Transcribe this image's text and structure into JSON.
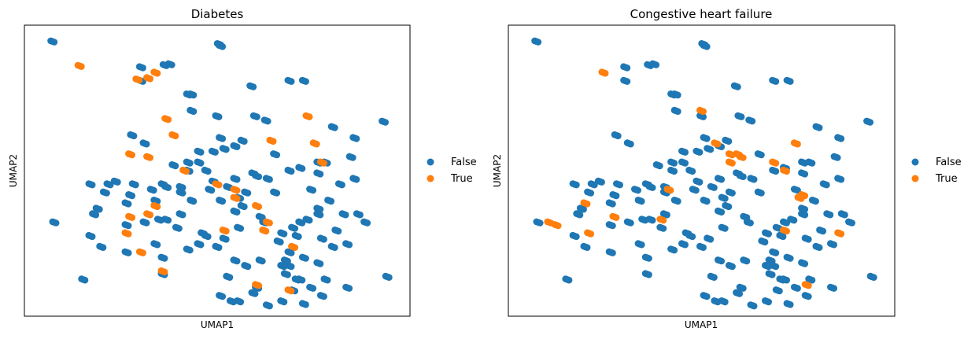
{
  "colors": {
    "false": "#1f77b4",
    "true": "#ff7f0e"
  },
  "chart_data": [
    {
      "type": "scatter",
      "title": "Diabetes",
      "xlabel": "UMAP1",
      "ylabel": "UMAP2",
      "xlim": [
        0,
        1
      ],
      "ylim": [
        0,
        1
      ],
      "grid": false,
      "ticks": false,
      "legend": {
        "placement": "right",
        "entries": [
          "False",
          "True"
        ]
      },
      "series": [
        {
          "name": "False",
          "x": [
            0.045,
            0.505,
            0.51,
            0.355,
            0.37,
            0.29,
            0.605,
            0.635,
            0.96,
            0.82,
            0.88,
            0.29,
            0.595,
            0.7,
            0.74,
            0.42,
            0.43,
            0.43,
            0.57,
            0.5,
            0.265,
            0.3,
            0.55,
            0.51,
            0.45,
            0.49,
            0.52,
            0.45,
            0.66,
            0.42,
            0.6,
            0.7,
            0.73,
            0.78,
            0.22,
            0.27,
            0.35,
            0.4,
            0.33,
            0.32,
            0.48,
            0.55,
            0.58,
            0.78,
            0.81,
            0.89,
            0.91,
            0.05,
            0.56,
            0.46,
            0.52,
            0.67,
            0.72,
            0.79,
            0.82,
            0.86,
            0.15,
            0.18,
            0.25,
            0.33,
            0.42,
            0.58,
            0.62,
            0.7,
            0.78,
            0.73,
            0.13,
            0.35,
            0.53,
            0.69,
            0.72,
            0.97,
            0.51,
            0.6,
            0.61,
            0.71,
            0.76,
            0.86,
            0.54,
            0.56,
            0.64,
            0.68,
            0.74,
            0.79,
            0.15,
            0.36,
            0.49,
            0.55,
            0.61,
            0.78,
            0.8,
            0.87,
            0.43,
            0.56,
            0.66,
            0.76,
            0.84,
            0.88,
            0.4,
            0.34,
            0.63,
            0.39,
            0.47,
            0.45,
            0.5,
            0.35,
            0.55,
            0.8,
            0.68,
            0.69,
            0.74,
            0.25,
            0.3,
            0.36,
            0.26,
            0.19,
            0.25,
            0.17,
            0.42,
            0.47,
            0.16,
            0.68,
            0.71,
            0.73,
            0.62,
            0.85,
            0.57,
            0.51,
            0.2,
            0.53,
            0.64,
            0.38,
            0.83,
            0.75,
            0.78,
            0.7,
            0.4
          ],
          "y": [
            0.975,
            0.965,
            0.958,
            0.888,
            0.891,
            0.88,
            0.7,
            0.684,
            0.68,
            0.66,
            0.62,
            0.83,
            0.81,
            0.83,
            0.83,
            0.78,
            0.78,
            0.72,
            0.61,
            0.7,
            0.63,
            0.6,
            0.59,
            0.62,
            0.57,
            0.57,
            0.58,
            0.53,
            0.56,
            0.53,
            0.49,
            0.5,
            0.51,
            0.49,
            0.46,
            0.45,
            0.45,
            0.44,
            0.39,
            0.43,
            0.43,
            0.35,
            0.42,
            0.36,
            0.39,
            0.34,
            0.31,
            0.31,
            0.29,
            0.27,
            0.25,
            0.24,
            0.26,
            0.25,
            0.22,
            0.23,
            0.26,
            0.22,
            0.2,
            0.23,
            0.21,
            0.15,
            0.17,
            0.15,
            0.16,
            0.1,
            0.1,
            0.12,
            0.11,
            0.12,
            0.1,
            0.11,
            0.04,
            0.05,
            0.07,
            0.06,
            0.07,
            0.07,
            0.02,
            0.02,
            0.005,
            0.02,
            0.01,
            0.04,
            0.45,
            0.44,
            0.46,
            0.47,
            0.48,
            0.53,
            0.53,
            0.55,
            0.39,
            0.4,
            0.42,
            0.43,
            0.45,
            0.47,
            0.34,
            0.32,
            0.31,
            0.29,
            0.26,
            0.23,
            0.22,
            0.18,
            0.17,
            0.1,
            0.15,
            0.17,
            0.18,
            0.3,
            0.31,
            0.32,
            0.41,
            0.42,
            0.38,
            0.36,
            0.5,
            0.5,
            0.34,
            0.27,
            0.29,
            0.31,
            0.33,
            0.34,
            0.37,
            0.39,
            0.45,
            0.44,
            0.47,
            0.52,
            0.28,
            0.32,
            0.34,
            0.2,
            0.42
          ]
        },
        {
          "name": "True",
          "x": [
            0.12,
            0.28,
            0.31,
            0.33,
            0.38,
            0.36,
            0.26,
            0.31,
            0.41,
            0.5,
            0.55,
            0.52,
            0.25,
            0.29,
            0.35,
            0.55,
            0.61,
            0.64,
            0.63,
            0.75,
            0.77,
            0.79,
            0.71,
            0.65,
            0.26,
            0.33,
            0.31,
            0.7,
            0.61
          ],
          "y": [
            0.885,
            0.835,
            0.84,
            0.86,
            0.63,
            0.69,
            0.56,
            0.55,
            0.5,
            0.45,
            0.43,
            0.28,
            0.27,
            0.2,
            0.13,
            0.4,
            0.37,
            0.31,
            0.28,
            0.7,
            0.6,
            0.53,
            0.22,
            0.61,
            0.33,
            0.37,
            0.34,
            0.06,
            0.08
          ]
        }
      ]
    },
    {
      "type": "scatter",
      "title": "Congestive heart failure",
      "xlabel": "UMAP1",
      "ylabel": "UMAP2",
      "xlim": [
        0,
        1
      ],
      "ylim": [
        0,
        1
      ],
      "grid": false,
      "ticks": false,
      "legend": {
        "placement": "right",
        "entries": [
          "False",
          "True"
        ]
      },
      "series": [
        {
          "name": "False",
          "x": [
            0.045,
            0.505,
            0.51,
            0.355,
            0.37,
            0.29,
            0.605,
            0.635,
            0.96,
            0.82,
            0.88,
            0.29,
            0.595,
            0.7,
            0.74,
            0.42,
            0.43,
            0.43,
            0.57,
            0.5,
            0.265,
            0.3,
            0.55,
            0.51,
            0.45,
            0.49,
            0.52,
            0.45,
            0.66,
            0.42,
            0.6,
            0.7,
            0.73,
            0.78,
            0.22,
            0.27,
            0.35,
            0.4,
            0.33,
            0.32,
            0.48,
            0.55,
            0.58,
            0.78,
            0.81,
            0.89,
            0.91,
            0.05,
            0.56,
            0.46,
            0.52,
            0.67,
            0.72,
            0.79,
            0.82,
            0.86,
            0.15,
            0.18,
            0.25,
            0.33,
            0.42,
            0.58,
            0.62,
            0.7,
            0.78,
            0.73,
            0.13,
            0.35,
            0.53,
            0.69,
            0.72,
            0.97,
            0.51,
            0.6,
            0.61,
            0.71,
            0.76,
            0.86,
            0.54,
            0.56,
            0.64,
            0.68,
            0.74,
            0.79,
            0.15,
            0.36,
            0.49,
            0.55,
            0.61,
            0.78,
            0.8,
            0.87,
            0.43,
            0.56,
            0.66,
            0.76,
            0.84,
            0.88,
            0.4,
            0.34,
            0.63,
            0.39,
            0.47,
            0.45,
            0.5,
            0.35,
            0.55,
            0.8,
            0.68,
            0.69,
            0.74,
            0.25,
            0.3,
            0.36,
            0.26,
            0.19,
            0.25,
            0.17,
            0.42,
            0.47,
            0.16,
            0.68,
            0.71,
            0.73,
            0.62,
            0.85,
            0.57,
            0.51,
            0.2,
            0.53,
            0.64,
            0.38,
            0.83,
            0.75,
            0.78,
            0.7,
            0.4
          ],
          "y": [
            0.975,
            0.965,
            0.958,
            0.888,
            0.891,
            0.88,
            0.7,
            0.684,
            0.68,
            0.66,
            0.62,
            0.83,
            0.81,
            0.83,
            0.83,
            0.78,
            0.78,
            0.72,
            0.61,
            0.7,
            0.63,
            0.6,
            0.59,
            0.62,
            0.57,
            0.57,
            0.58,
            0.53,
            0.56,
            0.53,
            0.49,
            0.5,
            0.51,
            0.49,
            0.46,
            0.45,
            0.45,
            0.44,
            0.39,
            0.43,
            0.43,
            0.35,
            0.42,
            0.36,
            0.39,
            0.34,
            0.31,
            0.31,
            0.29,
            0.27,
            0.25,
            0.24,
            0.26,
            0.25,
            0.22,
            0.23,
            0.26,
            0.22,
            0.2,
            0.23,
            0.21,
            0.15,
            0.17,
            0.15,
            0.16,
            0.1,
            0.1,
            0.12,
            0.11,
            0.12,
            0.1,
            0.11,
            0.04,
            0.05,
            0.07,
            0.06,
            0.07,
            0.07,
            0.02,
            0.02,
            0.005,
            0.02,
            0.01,
            0.04,
            0.45,
            0.44,
            0.46,
            0.47,
            0.48,
            0.53,
            0.53,
            0.55,
            0.39,
            0.4,
            0.42,
            0.43,
            0.45,
            0.47,
            0.34,
            0.32,
            0.31,
            0.29,
            0.26,
            0.23,
            0.22,
            0.18,
            0.17,
            0.1,
            0.15,
            0.17,
            0.18,
            0.3,
            0.31,
            0.32,
            0.41,
            0.42,
            0.38,
            0.36,
            0.5,
            0.5,
            0.34,
            0.27,
            0.29,
            0.31,
            0.33,
            0.34,
            0.37,
            0.39,
            0.45,
            0.44,
            0.47,
            0.52,
            0.28,
            0.32,
            0.34,
            0.2,
            0.42
          ]
        },
        {
          "name": "True",
          "x": [
            0.23,
            0.18,
            0.26,
            0.58,
            0.61,
            0.7,
            0.73,
            0.78,
            0.88,
            0.76,
            0.08,
            0.1,
            0.19,
            0.5,
            0.54,
            0.6,
            0.58,
            0.73,
            0.79,
            0.77,
            0.41,
            0.39
          ],
          "y": [
            0.86,
            0.38,
            0.33,
            0.56,
            0.55,
            0.53,
            0.5,
            0.41,
            0.27,
            0.6,
            0.31,
            0.3,
            0.27,
            0.72,
            0.6,
            0.56,
            0.53,
            0.28,
            0.08,
            0.4,
            0.43,
            0.32
          ]
        }
      ]
    }
  ]
}
